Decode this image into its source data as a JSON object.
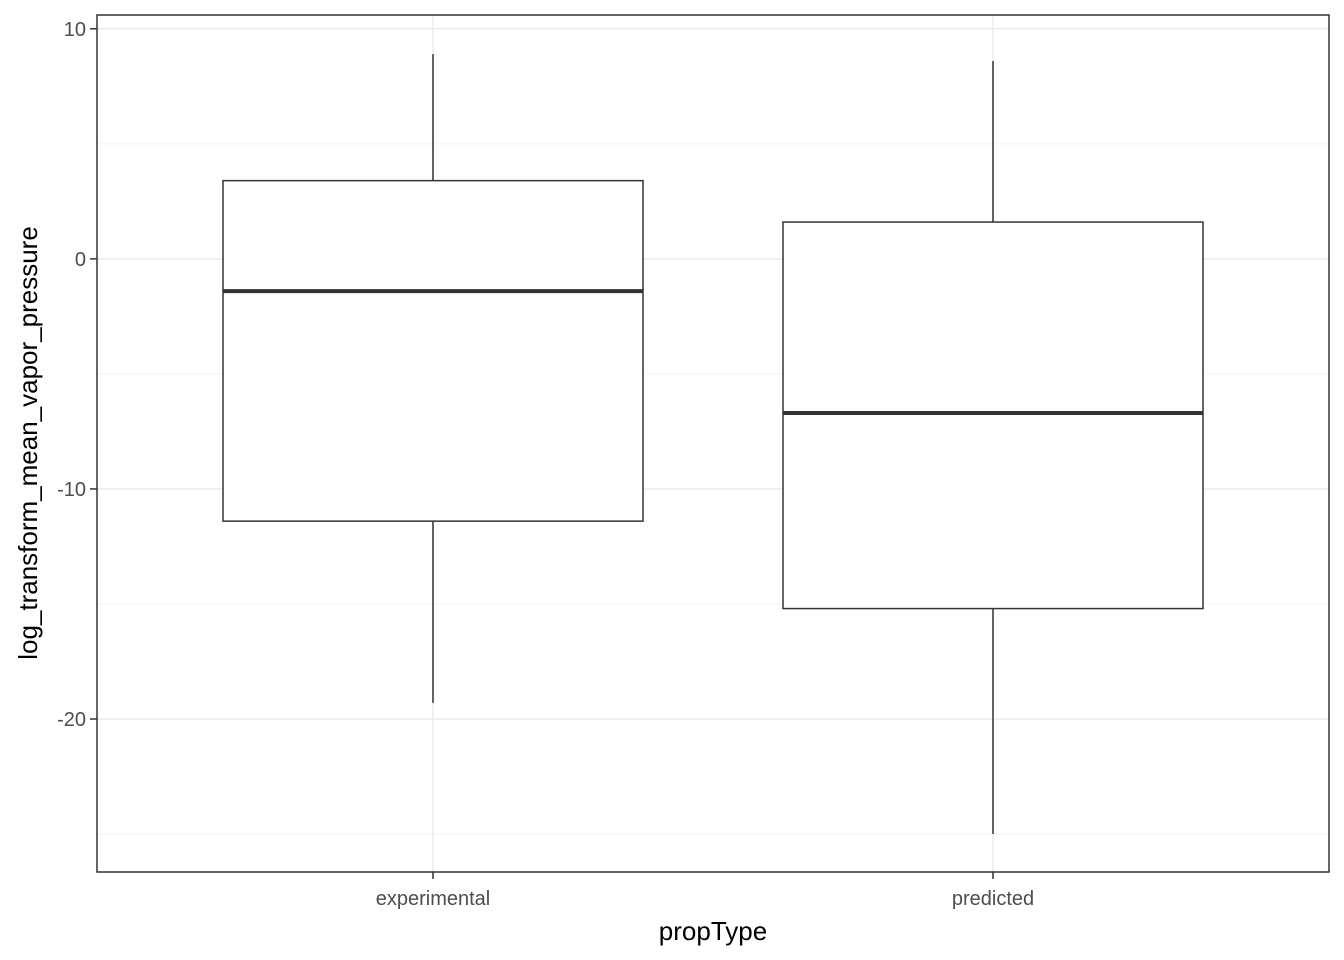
{
  "chart_data": {
    "type": "boxplot",
    "xlabel": "propType",
    "ylabel": "log_transform_mean_vapor_pressure",
    "categories": [
      "experimental",
      "predicted"
    ],
    "boxes": [
      {
        "category": "experimental",
        "lower_whisker": -19.3,
        "q1": -11.4,
        "median": -1.4,
        "q3": 3.4,
        "upper_whisker": 8.9
      },
      {
        "category": "predicted",
        "lower_whisker": -25.0,
        "q1": -15.2,
        "median": -6.7,
        "q3": 1.6,
        "upper_whisker": 8.6
      }
    ],
    "ylim": [
      -26.65,
      10.6
    ],
    "y_ticks": [
      10,
      0,
      -10,
      -20
    ],
    "y_tick_labels": [
      "10",
      "0",
      "-10",
      "-20"
    ],
    "y_minor_ticks": [
      5,
      -5,
      -15,
      -25
    ],
    "grid": true,
    "colors": {
      "panel_border": "#333333",
      "grid_major": "#ebebeb",
      "grid_minor": "#f5f5f5",
      "box_line": "#333333",
      "box_fill": "#ffffff"
    }
  }
}
